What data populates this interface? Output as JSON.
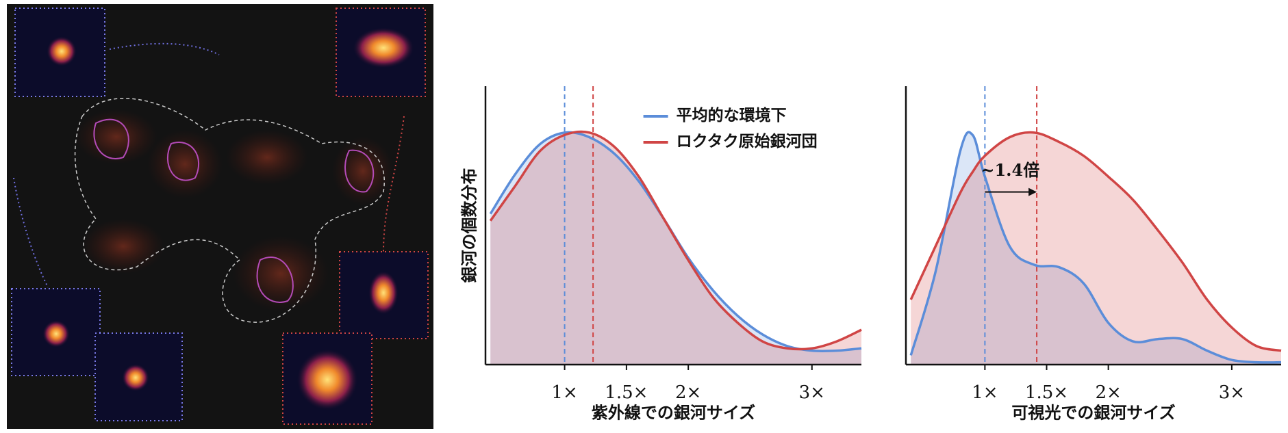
{
  "chart_data": [
    {
      "type": "density",
      "xlabel": "紫外線での銀河サイズ",
      "ylabel": "銀河の個数分布",
      "xlim": [
        0.36,
        3.4
      ],
      "ylim": [
        0,
        1.2
      ],
      "xticks": [
        {
          "value": 1,
          "label": "1×"
        },
        {
          "value": 1.5,
          "label": "1.5×"
        },
        {
          "value": 2,
          "label": "2×"
        },
        {
          "value": 3,
          "label": "3×"
        }
      ],
      "x": [
        0.4,
        0.6,
        0.8,
        1.0,
        1.2,
        1.4,
        1.6,
        1.8,
        2.0,
        2.2,
        2.4,
        2.6,
        2.8,
        3.0,
        3.2,
        3.4
      ],
      "series": [
        {
          "name": "平均的な環境下",
          "color": "#5b8dd9",
          "values": [
            0.65,
            0.82,
            0.95,
            1.0,
            0.98,
            0.91,
            0.79,
            0.63,
            0.46,
            0.32,
            0.21,
            0.13,
            0.08,
            0.06,
            0.06,
            0.07
          ]
        },
        {
          "name": "ロクタク原始銀河団",
          "color": "#d04545",
          "values": [
            0.62,
            0.77,
            0.92,
            0.99,
            1.0,
            0.94,
            0.81,
            0.63,
            0.45,
            0.29,
            0.18,
            0.1,
            0.07,
            0.07,
            0.1,
            0.15
          ]
        }
      ],
      "markers": [
        {
          "value": 1.0,
          "color": "#5b8dd9"
        },
        {
          "value": 1.23,
          "color": "#d04545"
        }
      ],
      "legend": "upper right"
    },
    {
      "type": "density",
      "xlabel": "可視光での銀河サイズ",
      "xlim": [
        0.36,
        3.4
      ],
      "ylim": [
        0,
        1.2
      ],
      "xticks": [
        {
          "value": 1,
          "label": "1×"
        },
        {
          "value": 1.5,
          "label": "1.5×"
        },
        {
          "value": 2,
          "label": "2×"
        },
        {
          "value": 3,
          "label": "3×"
        }
      ],
      "x": [
        0.4,
        0.6,
        0.8,
        0.9,
        1.0,
        1.2,
        1.4,
        1.6,
        1.8,
        2.0,
        2.2,
        2.4,
        2.6,
        2.8,
        3.0,
        3.2,
        3.4
      ],
      "series": [
        {
          "name": "平均的な環境下",
          "color": "#5b8dd9",
          "values": [
            0.04,
            0.4,
            0.92,
            0.99,
            0.81,
            0.51,
            0.43,
            0.42,
            0.35,
            0.18,
            0.1,
            0.11,
            0.11,
            0.06,
            0.02,
            0.01,
            0.01
          ]
        },
        {
          "name": "ロクタク原始銀河団",
          "color": "#d04545",
          "values": [
            0.28,
            0.51,
            0.74,
            0.83,
            0.9,
            0.98,
            1.0,
            0.96,
            0.9,
            0.81,
            0.71,
            0.58,
            0.44,
            0.28,
            0.16,
            0.08,
            0.06
          ]
        }
      ],
      "markers": [
        {
          "value": 1.0,
          "color": "#5b8dd9"
        },
        {
          "value": 1.42,
          "color": "#d04545"
        }
      ],
      "annotation": "~1.4倍"
    }
  ]
}
